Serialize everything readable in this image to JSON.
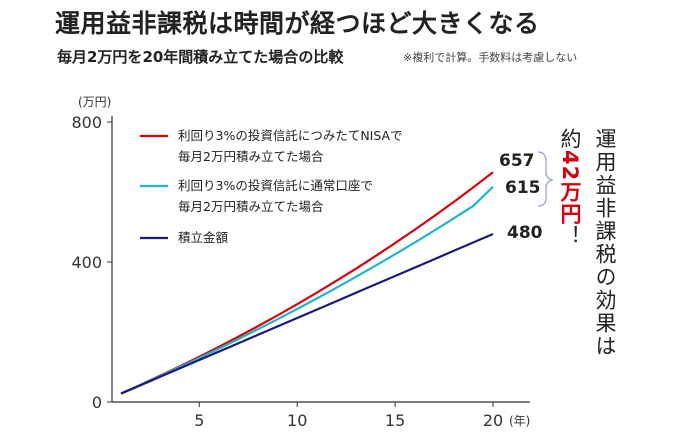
{
  "title": "運用益非課税は時間が経つほど大きくなる",
  "subtitle": "毎月2万円を20年間積み立てた場合の比較",
  "note": "※複利で計算。手数料は考慮しない",
  "effect_text": "運用益非課税の効果は",
  "about_prefix": "約",
  "about_amount": "42万円",
  "about_suffix": "！",
  "chart_data": {
    "type": "line",
    "ylabel": "(万円)",
    "xlabel": "(年)",
    "ylim": [
      0,
      800
    ],
    "yticks": [
      0,
      400,
      800
    ],
    "xticks": [
      5,
      10,
      15,
      20
    ],
    "x": [
      1,
      2,
      3,
      4,
      5,
      6,
      7,
      8,
      9,
      10,
      11,
      12,
      13,
      14,
      15,
      16,
      17,
      18,
      19,
      20
    ],
    "grid": false,
    "legend_placement": "top-left",
    "series": [
      {
        "name": "利回り3%の投資信託につみたてNISAで毎月2万円積み立てた場合",
        "legend_lines": [
          "利回り3%の投資信託につみたてNISAで",
          "毎月2万円積み立てた場合"
        ],
        "color": "#d7000f",
        "values": [
          24.3,
          49.4,
          75.2,
          101.9,
          129.3,
          157.6,
          186.7,
          216.7,
          247.6,
          279.5,
          312.3,
          346.2,
          381.0,
          416.9,
          454.0,
          492.1,
          531.4,
          571.9,
          613.6,
          656.6
        ],
        "end_label": "657"
      },
      {
        "name": "利回り3%の投資信託に通常口座で毎月2万円積み立てた場合",
        "legend_lines": [
          "利回り3%の投資信託に通常口座で",
          "毎月2万円積み立てた場合"
        ],
        "color": "#1fb5c9",
        "values": [
          24.3,
          48.9,
          74.0,
          99.6,
          125.8,
          152.6,
          180.0,
          208.0,
          236.6,
          265.8,
          295.7,
          326.3,
          357.6,
          389.5,
          422.2,
          455.6,
          489.8,
          524.8,
          560.5,
          615.0
        ],
        "end_label": "615"
      },
      {
        "name": "積立金額",
        "legend_lines": [
          "積立金額"
        ],
        "color": "#1a1a7a",
        "values": [
          24,
          48,
          72,
          96,
          120,
          144,
          168,
          192,
          216,
          240,
          264,
          288,
          312,
          336,
          360,
          384,
          408,
          432,
          456,
          480
        ],
        "end_label": "480"
      }
    ]
  }
}
